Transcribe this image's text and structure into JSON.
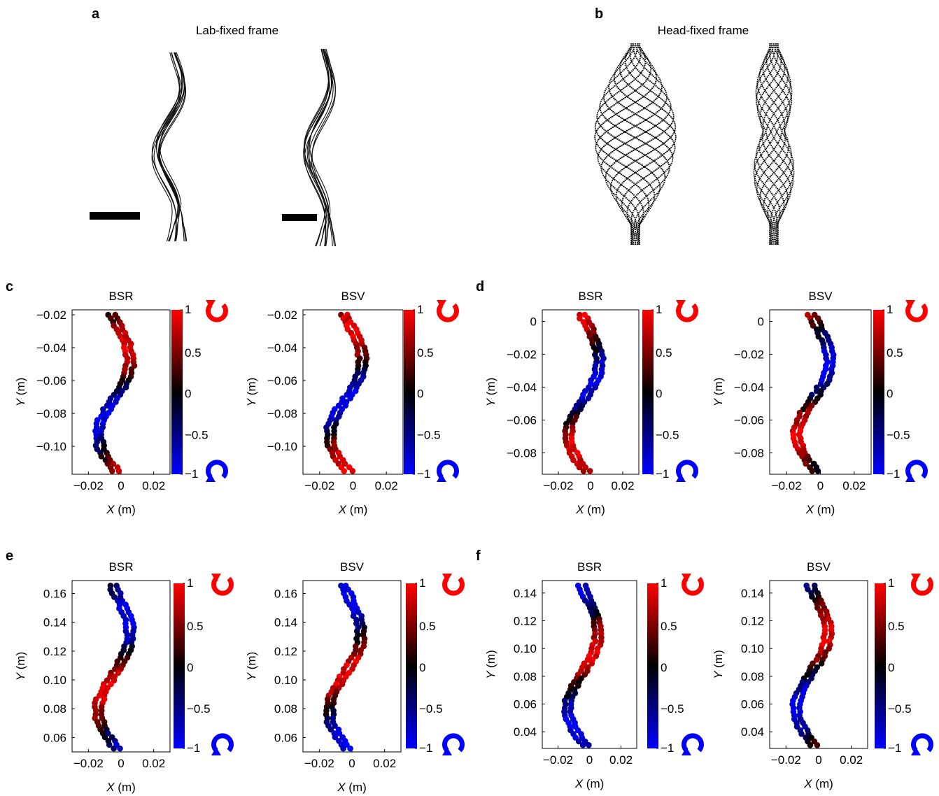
{
  "panels": {
    "a": {
      "letter": "a",
      "title": "Lab-fixed frame"
    },
    "b": {
      "letter": "b",
      "title": "Head-fixed frame"
    },
    "c": {
      "letter": "c"
    },
    "d": {
      "letter": "d"
    },
    "e": {
      "letter": "e"
    },
    "f": {
      "letter": "f"
    }
  },
  "colorbar": {
    "ticks": [
      "1",
      "0.5",
      "0",
      "−0.5",
      "−1"
    ],
    "top_color": "#ff0000",
    "mid_color": "#000000",
    "bottom_color": "#0000ff"
  },
  "icons": {
    "top": "ccw-arrow-red-icon",
    "bottom": "cw-arrow-blue-icon"
  },
  "chart_data": [
    {
      "panel": "c",
      "title": "BSR",
      "type": "scatter",
      "xlabel_var": "X",
      "xlabel_unit": " (m)",
      "ylabel_var": "Y",
      "ylabel_unit": " (m)",
      "xticks": [
        "−0.02",
        "0",
        "0.02"
      ],
      "yticks": [
        "−0.02",
        "−0.04",
        "−0.06",
        "−0.08",
        "−0.10"
      ],
      "xlim": [
        -0.03,
        0.03
      ],
      "ylim": [
        -0.117,
        -0.017
      ],
      "colorbar": [
        -1,
        1
      ]
    },
    {
      "panel": "c",
      "title": "BSV",
      "type": "scatter",
      "xlabel_var": "X",
      "xlabel_unit": " (m)",
      "ylabel_var": "Y",
      "ylabel_unit": " (m)",
      "xticks": [
        "−0.02",
        "0",
        "0.02"
      ],
      "yticks": [
        "−0.02",
        "−0.04",
        "−0.06",
        "−0.08",
        "−0.10"
      ],
      "xlim": [
        -0.03,
        0.03
      ],
      "ylim": [
        -0.117,
        -0.017
      ],
      "colorbar": [
        -1,
        1
      ]
    },
    {
      "panel": "d",
      "title": "BSR",
      "type": "scatter",
      "xlabel_var": "X",
      "xlabel_unit": " (m)",
      "ylabel_var": "Y",
      "ylabel_unit": " (m)",
      "xticks": [
        "−0.02",
        "0",
        "0.02"
      ],
      "yticks": [
        "0",
        "−0.02",
        "−0.04",
        "−0.06",
        "−0.08"
      ],
      "xlim": [
        -0.03,
        0.03
      ],
      "ylim": [
        -0.093,
        0.007
      ],
      "colorbar": [
        -1,
        1
      ]
    },
    {
      "panel": "d",
      "title": "BSV",
      "type": "scatter",
      "xlabel_var": "X",
      "xlabel_unit": " (m)",
      "ylabel_var": "Y",
      "ylabel_unit": " (m)",
      "xticks": [
        "−0.02",
        "0",
        "0.02"
      ],
      "yticks": [
        "0",
        "−0.02",
        "−0.04",
        "−0.06",
        "−0.08"
      ],
      "xlim": [
        -0.03,
        0.03
      ],
      "ylim": [
        -0.093,
        0.007
      ],
      "colorbar": [
        -1,
        1
      ]
    },
    {
      "panel": "e",
      "title": "BSR",
      "type": "scatter",
      "xlabel_var": "X",
      "xlabel_unit": " (m)",
      "ylabel_var": "Y",
      "ylabel_unit": " (m)",
      "xticks": [
        "−0.02",
        "0",
        "0.02"
      ],
      "yticks": [
        "0.16",
        "0.14",
        "0.12",
        "0.10",
        "0.08",
        "0.06"
      ],
      "xlim": [
        -0.03,
        0.03
      ],
      "ylim": [
        0.05,
        0.169
      ],
      "colorbar": [
        -1,
        1
      ]
    },
    {
      "panel": "e",
      "title": "BSV",
      "type": "scatter",
      "xlabel_var": "X",
      "xlabel_unit": " (m)",
      "ylabel_var": "Y",
      "ylabel_unit": " (m)",
      "xticks": [
        "−0.02",
        "0",
        "0.02"
      ],
      "yticks": [
        "0.16",
        "0.14",
        "0.12",
        "0.10",
        "0.08",
        "0.06"
      ],
      "xlim": [
        -0.03,
        0.03
      ],
      "ylim": [
        0.05,
        0.169
      ],
      "colorbar": [
        -1,
        1
      ]
    },
    {
      "panel": "f",
      "title": "BSR",
      "type": "scatter",
      "xlabel_var": "X",
      "xlabel_unit": " (m)",
      "ylabel_var": "Y",
      "ylabel_unit": " (m)",
      "xticks": [
        "−0.02",
        "0",
        "0.02"
      ],
      "yticks": [
        "0.14",
        "0.12",
        "0.10",
        "0.08",
        "0.06",
        "0.04"
      ],
      "xlim": [
        -0.03,
        0.03
      ],
      "ylim": [
        0.028,
        0.149
      ],
      "colorbar": [
        -1,
        1
      ]
    },
    {
      "panel": "f",
      "title": "BSV",
      "type": "scatter",
      "xlabel_var": "X",
      "xlabel_unit": " (m)",
      "ylabel_var": "Y",
      "ylabel_unit": " (m)",
      "xticks": [
        "−0.02",
        "0",
        "0.02"
      ],
      "yticks": [
        "0.14",
        "0.12",
        "0.10",
        "0.08",
        "0.06",
        "0.04"
      ],
      "xlim": [
        -0.03,
        0.03
      ],
      "ylim": [
        0.028,
        0.149
      ],
      "colorbar": [
        -1,
        1
      ]
    }
  ]
}
